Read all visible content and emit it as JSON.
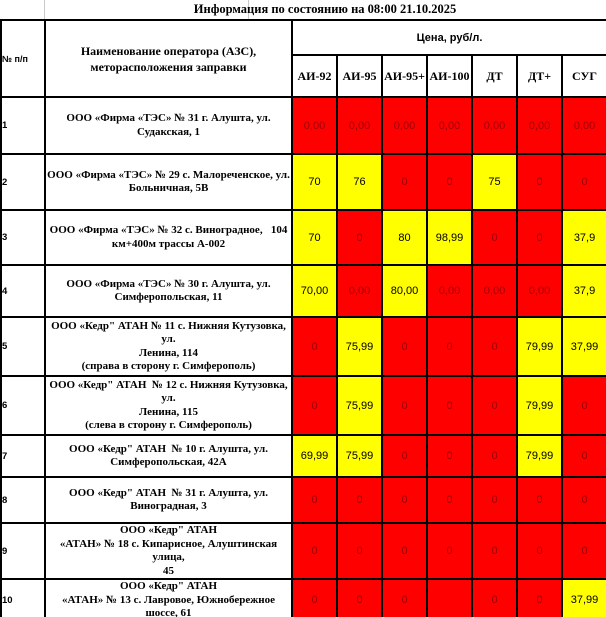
{
  "title": "Информация по состоянию на 08:00 21.10.2025",
  "table": {
    "col_num_header": "№ п/п",
    "col_name_header": "Наименование оператора (АЗС),\nметорасположения заправки",
    "price_header": "Цена, руб/л.",
    "fuel_columns": [
      "АИ-92",
      "АИ-95",
      "АИ-95+",
      "АИ-100",
      "ДТ",
      "ДТ+",
      "СУГ"
    ],
    "colors": {
      "available_bg": "#FFFF00",
      "unavailable_bg": "#FF0000",
      "unavailable_text": "#9C0006",
      "available_text": "#000000",
      "border": "#000000"
    },
    "rows": [
      {
        "num": "1",
        "name": "ООО «Фирма «ТЭС» № 31 г. Алушта, ул.\nСудакская, 1",
        "values": [
          {
            "v": "0,00",
            "s": "unavailable"
          },
          {
            "v": "0,00",
            "s": "unavailable"
          },
          {
            "v": "0,00",
            "s": "unavailable"
          },
          {
            "v": "0,00",
            "s": "unavailable"
          },
          {
            "v": "0,00",
            "s": "unavailable"
          },
          {
            "v": "0,00",
            "s": "unavailable"
          },
          {
            "v": "0,00",
            "s": "unavailable"
          }
        ]
      },
      {
        "num": "2",
        "name": "ООО «Фирма «ТЭС» № 29 с. Малореченское, ул.\nБольничная, 5В",
        "values": [
          {
            "v": "70",
            "s": "available"
          },
          {
            "v": "76",
            "s": "available"
          },
          {
            "v": "0",
            "s": "unavailable"
          },
          {
            "v": "0",
            "s": "unavailable"
          },
          {
            "v": "75",
            "s": "available"
          },
          {
            "v": "0",
            "s": "unavailable"
          },
          {
            "v": "0",
            "s": "unavailable"
          }
        ]
      },
      {
        "num": "3",
        "name": "ООО «Фирма «ТЭС» № 32 с. Виноградное,   104\nкм+400м трассы А-002",
        "values": [
          {
            "v": "70",
            "s": "available"
          },
          {
            "v": "0",
            "s": "unavailable"
          },
          {
            "v": "80",
            "s": "available"
          },
          {
            "v": "98,99",
            "s": "available"
          },
          {
            "v": "0",
            "s": "unavailable"
          },
          {
            "v": "0",
            "s": "unavailable"
          },
          {
            "v": "37,9",
            "s": "available"
          }
        ]
      },
      {
        "num": "4",
        "name": "ООО «Фирма «ТЭС» № 30 г. Алушта, ул.\nСимферопольская, 11",
        "values": [
          {
            "v": "70,00",
            "s": "available"
          },
          {
            "v": "0,00",
            "s": "unavailable"
          },
          {
            "v": "80,00",
            "s": "available"
          },
          {
            "v": "0,00",
            "s": "unavailable"
          },
          {
            "v": "0,00",
            "s": "unavailable"
          },
          {
            "v": "0,00",
            "s": "unavailable"
          },
          {
            "v": "37,9",
            "s": "available"
          }
        ]
      },
      {
        "num": "5",
        "name": "ООО «Кедр\" АТАН № 11 с. Нижняя Кутузовка, ул.\nЛенина, 114\n(справа в сторону г. Симферополь)",
        "values": [
          {
            "v": "0",
            "s": "unavailable"
          },
          {
            "v": "75,99",
            "s": "available"
          },
          {
            "v": "0",
            "s": "unavailable"
          },
          {
            "v": "0",
            "s": "unavailable"
          },
          {
            "v": "0",
            "s": "unavailable"
          },
          {
            "v": "79,99",
            "s": "available"
          },
          {
            "v": "37,99",
            "s": "available"
          }
        ]
      },
      {
        "num": "6",
        "name": "ООО «Кедр\" АТАН  № 12 с. Нижняя Кутузовка, ул.\nЛенина, 115\n(слева в сторону г. Симферополь)",
        "values": [
          {
            "v": "0",
            "s": "unavailable"
          },
          {
            "v": "75,99",
            "s": "available"
          },
          {
            "v": "0",
            "s": "unavailable"
          },
          {
            "v": "0",
            "s": "unavailable"
          },
          {
            "v": "0",
            "s": "unavailable"
          },
          {
            "v": "79,99",
            "s": "available"
          },
          {
            "v": "0",
            "s": "unavailable"
          }
        ]
      },
      {
        "num": "7",
        "name": "ООО «Кедр\" АТАН  № 10 г. Алушта, ул.\nСимферопольская, 42А",
        "values": [
          {
            "v": "69,99",
            "s": "available"
          },
          {
            "v": "75,99",
            "s": "available"
          },
          {
            "v": "0",
            "s": "unavailable"
          },
          {
            "v": "0",
            "s": "unavailable"
          },
          {
            "v": "0",
            "s": "unavailable"
          },
          {
            "v": "79,99",
            "s": "available"
          },
          {
            "v": "0",
            "s": "unavailable"
          }
        ]
      },
      {
        "num": "8",
        "name": "ООО «Кедр\" АТАН  № 31 г. Алушта, ул.\nВиноградная, 3",
        "values": [
          {
            "v": "0",
            "s": "unavailable"
          },
          {
            "v": "0",
            "s": "unavailable"
          },
          {
            "v": "0",
            "s": "unavailable"
          },
          {
            "v": "0",
            "s": "unavailable"
          },
          {
            "v": "0",
            "s": "unavailable"
          },
          {
            "v": "0",
            "s": "unavailable"
          },
          {
            "v": "0",
            "s": "unavailable"
          }
        ]
      },
      {
        "num": "9",
        "name": "ООО «Кедр\" АТАН\n«АТАН» № 18 с. Кипарисное, Алуштинская улица,\n45",
        "values": [
          {
            "v": "0",
            "s": "unavailable"
          },
          {
            "v": "0",
            "s": "unavailable"
          },
          {
            "v": "0",
            "s": "unavailable"
          },
          {
            "v": "0",
            "s": "unavailable"
          },
          {
            "v": "0",
            "s": "unavailable"
          },
          {
            "v": "0",
            "s": "unavailable"
          },
          {
            "v": "0",
            "s": "unavailable"
          }
        ]
      },
      {
        "num": "10",
        "name": "ООО «Кедр\" АТАН\n«АТАН» № 13 с. Лавровое, Южнобережное шоссе, 61",
        "values": [
          {
            "v": "0",
            "s": "unavailable"
          },
          {
            "v": "0",
            "s": "unavailable"
          },
          {
            "v": "0",
            "s": "unavailable"
          },
          {
            "v": "",
            "s": "unavailable"
          },
          {
            "v": "0",
            "s": "unavailable"
          },
          {
            "v": "0",
            "s": "unavailable"
          },
          {
            "v": "37,99",
            "s": "available"
          }
        ]
      }
    ]
  }
}
